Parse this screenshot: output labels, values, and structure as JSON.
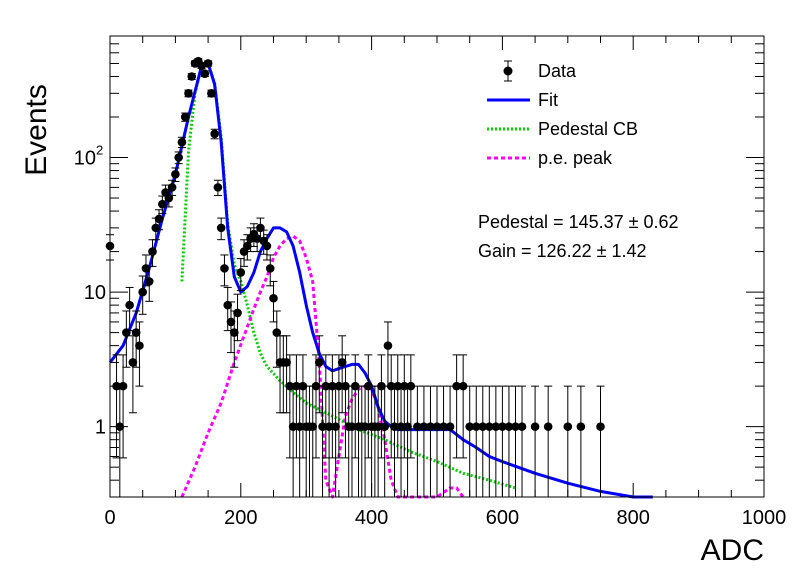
{
  "chart_data": {
    "type": "scatter",
    "title": "",
    "xlabel": "ADC",
    "ylabel": "Events",
    "xlim": [
      0,
      1000
    ],
    "ylim": [
      0.3,
      800
    ],
    "yscale": "log",
    "grid": false,
    "legend_position": "top-right",
    "x_ticks": [
      {
        "value": 0,
        "label": "0"
      },
      {
        "value": 200,
        "label": "200"
      },
      {
        "value": 400,
        "label": "400"
      },
      {
        "value": 600,
        "label": "600"
      },
      {
        "value": 800,
        "label": "800"
      },
      {
        "value": 1000,
        "label": "1000"
      }
    ],
    "y_ticks": [
      {
        "value": 1,
        "label": "1"
      },
      {
        "value": 10,
        "label": "10"
      },
      {
        "value": 100,
        "label": "10",
        "sup": "2"
      }
    ],
    "legend": [
      {
        "label": "Data",
        "style": "marker",
        "color": "#000000"
      },
      {
        "label": "Fit",
        "style": "solid",
        "color": "#0000ff"
      },
      {
        "label": "Pedestal CB",
        "style": "dotted",
        "color": "#00cc00"
      },
      {
        "label": "p.e. peak",
        "style": "dashed",
        "color": "#ff00ff"
      }
    ],
    "annotations": [
      "Pedestal = 145.37 ± 0.62",
      "Gain = 126.22 ± 1.42"
    ],
    "series": [
      {
        "name": "Data",
        "kind": "points",
        "color": "#000000",
        "x": [
          0,
          10,
          15,
          20,
          25,
          30,
          35,
          40,
          45,
          50,
          55,
          60,
          65,
          70,
          75,
          80,
          85,
          90,
          95,
          100,
          105,
          110,
          115,
          120,
          125,
          130,
          135,
          140,
          145,
          150,
          155,
          160,
          165,
          170,
          175,
          180,
          185,
          190,
          195,
          200,
          205,
          210,
          215,
          220,
          225,
          230,
          235,
          240,
          245,
          250,
          255,
          260,
          265,
          270,
          275,
          280,
          285,
          290,
          295,
          300,
          305,
          310,
          315,
          320,
          325,
          330,
          335,
          340,
          345,
          350,
          355,
          360,
          365,
          370,
          375,
          380,
          385,
          390,
          395,
          400,
          405,
          410,
          415,
          420,
          425,
          430,
          435,
          440,
          445,
          450,
          455,
          460,
          470,
          480,
          490,
          500,
          510,
          520,
          530,
          540,
          550,
          560,
          570,
          580,
          590,
          600,
          610,
          620,
          630,
          650,
          670,
          700,
          720,
          750
        ],
        "y": [
          22,
          2,
          1,
          2,
          5,
          8,
          3,
          5,
          4,
          10,
          15,
          12,
          20,
          30,
          35,
          45,
          55,
          50,
          60,
          75,
          100,
          130,
          200,
          300,
          400,
          500,
          520,
          480,
          420,
          500,
          300,
          150,
          60,
          30,
          15,
          8,
          6,
          5,
          7,
          14,
          20,
          22,
          25,
          27,
          25,
          30,
          24,
          22,
          15,
          9,
          5,
          3,
          3,
          3,
          2,
          1,
          2,
          1,
          2,
          1,
          1,
          1,
          2,
          3,
          1,
          2,
          1,
          2,
          1,
          2,
          3,
          2,
          1,
          1,
          2,
          1,
          1,
          1,
          2,
          1,
          1,
          1,
          2,
          1,
          4,
          2,
          1,
          2,
          1,
          2,
          1,
          2,
          1,
          1,
          1,
          1,
          1,
          1,
          2,
          2,
          1,
          1,
          1,
          1,
          1,
          1,
          1,
          1,
          1,
          1,
          1,
          1,
          1,
          1
        ]
      },
      {
        "name": "Fit",
        "kind": "curve",
        "color": "#0000ff",
        "x": [
          0,
          20,
          40,
          60,
          80,
          100,
          120,
          140,
          150,
          160,
          170,
          180,
          190,
          200,
          210,
          220,
          230,
          240,
          250,
          260,
          270,
          280,
          290,
          300,
          310,
          320,
          330,
          340,
          350,
          360,
          370,
          380,
          390,
          400,
          410,
          420,
          430,
          440,
          460,
          480,
          500,
          520,
          540,
          560,
          580,
          600,
          650,
          700,
          750,
          800,
          830
        ],
        "y": [
          3,
          4,
          7,
          15,
          35,
          75,
          200,
          480,
          500,
          350,
          130,
          30,
          13,
          10,
          11,
          14,
          20,
          25,
          30,
          30,
          28,
          22,
          14,
          8,
          5,
          3.5,
          2.8,
          2.6,
          2.7,
          2.8,
          2.9,
          2.9,
          2.5,
          2,
          1.4,
          1.1,
          1,
          0.95,
          0.95,
          0.95,
          0.95,
          0.95,
          0.8,
          0.7,
          0.6,
          0.55,
          0.45,
          0.38,
          0.33,
          0.3,
          0.3
        ]
      },
      {
        "name": "Pedestal CB",
        "kind": "curve",
        "color": "#00cc00",
        "x": [
          110,
          120,
          130,
          140,
          150,
          160,
          170,
          180,
          190,
          200,
          210,
          220,
          230,
          240,
          260,
          280,
          300,
          340,
          380,
          420,
          460,
          500,
          540,
          580,
          620
        ],
        "y": [
          12,
          110,
          300,
          480,
          500,
          360,
          140,
          32,
          16,
          12,
          8,
          5,
          3.5,
          2.8,
          2.2,
          1.8,
          1.5,
          1.2,
          0.95,
          0.8,
          0.65,
          0.55,
          0.45,
          0.4,
          0.35
        ]
      },
      {
        "name": "p.e. peak",
        "kind": "curve",
        "color": "#ff00ff",
        "x": [
          110,
          130,
          150,
          170,
          190,
          210,
          220,
          230,
          240,
          250,
          260,
          270,
          280,
          290,
          300,
          310,
          320,
          330,
          340,
          350,
          360,
          370,
          380,
          390,
          400,
          410,
          420,
          430,
          440,
          500,
          520,
          530,
          540
        ],
        "y": [
          0.3,
          0.5,
          0.9,
          1.5,
          3,
          5.5,
          7.5,
          10,
          13,
          18,
          22,
          25,
          26,
          24,
          18,
          12,
          3,
          0.4,
          0.3,
          0.6,
          1.2,
          1.6,
          1.9,
          2,
          1.9,
          1.4,
          0.8,
          0.4,
          0.3,
          0.3,
          0.35,
          0.35,
          0.3
        ]
      }
    ]
  }
}
